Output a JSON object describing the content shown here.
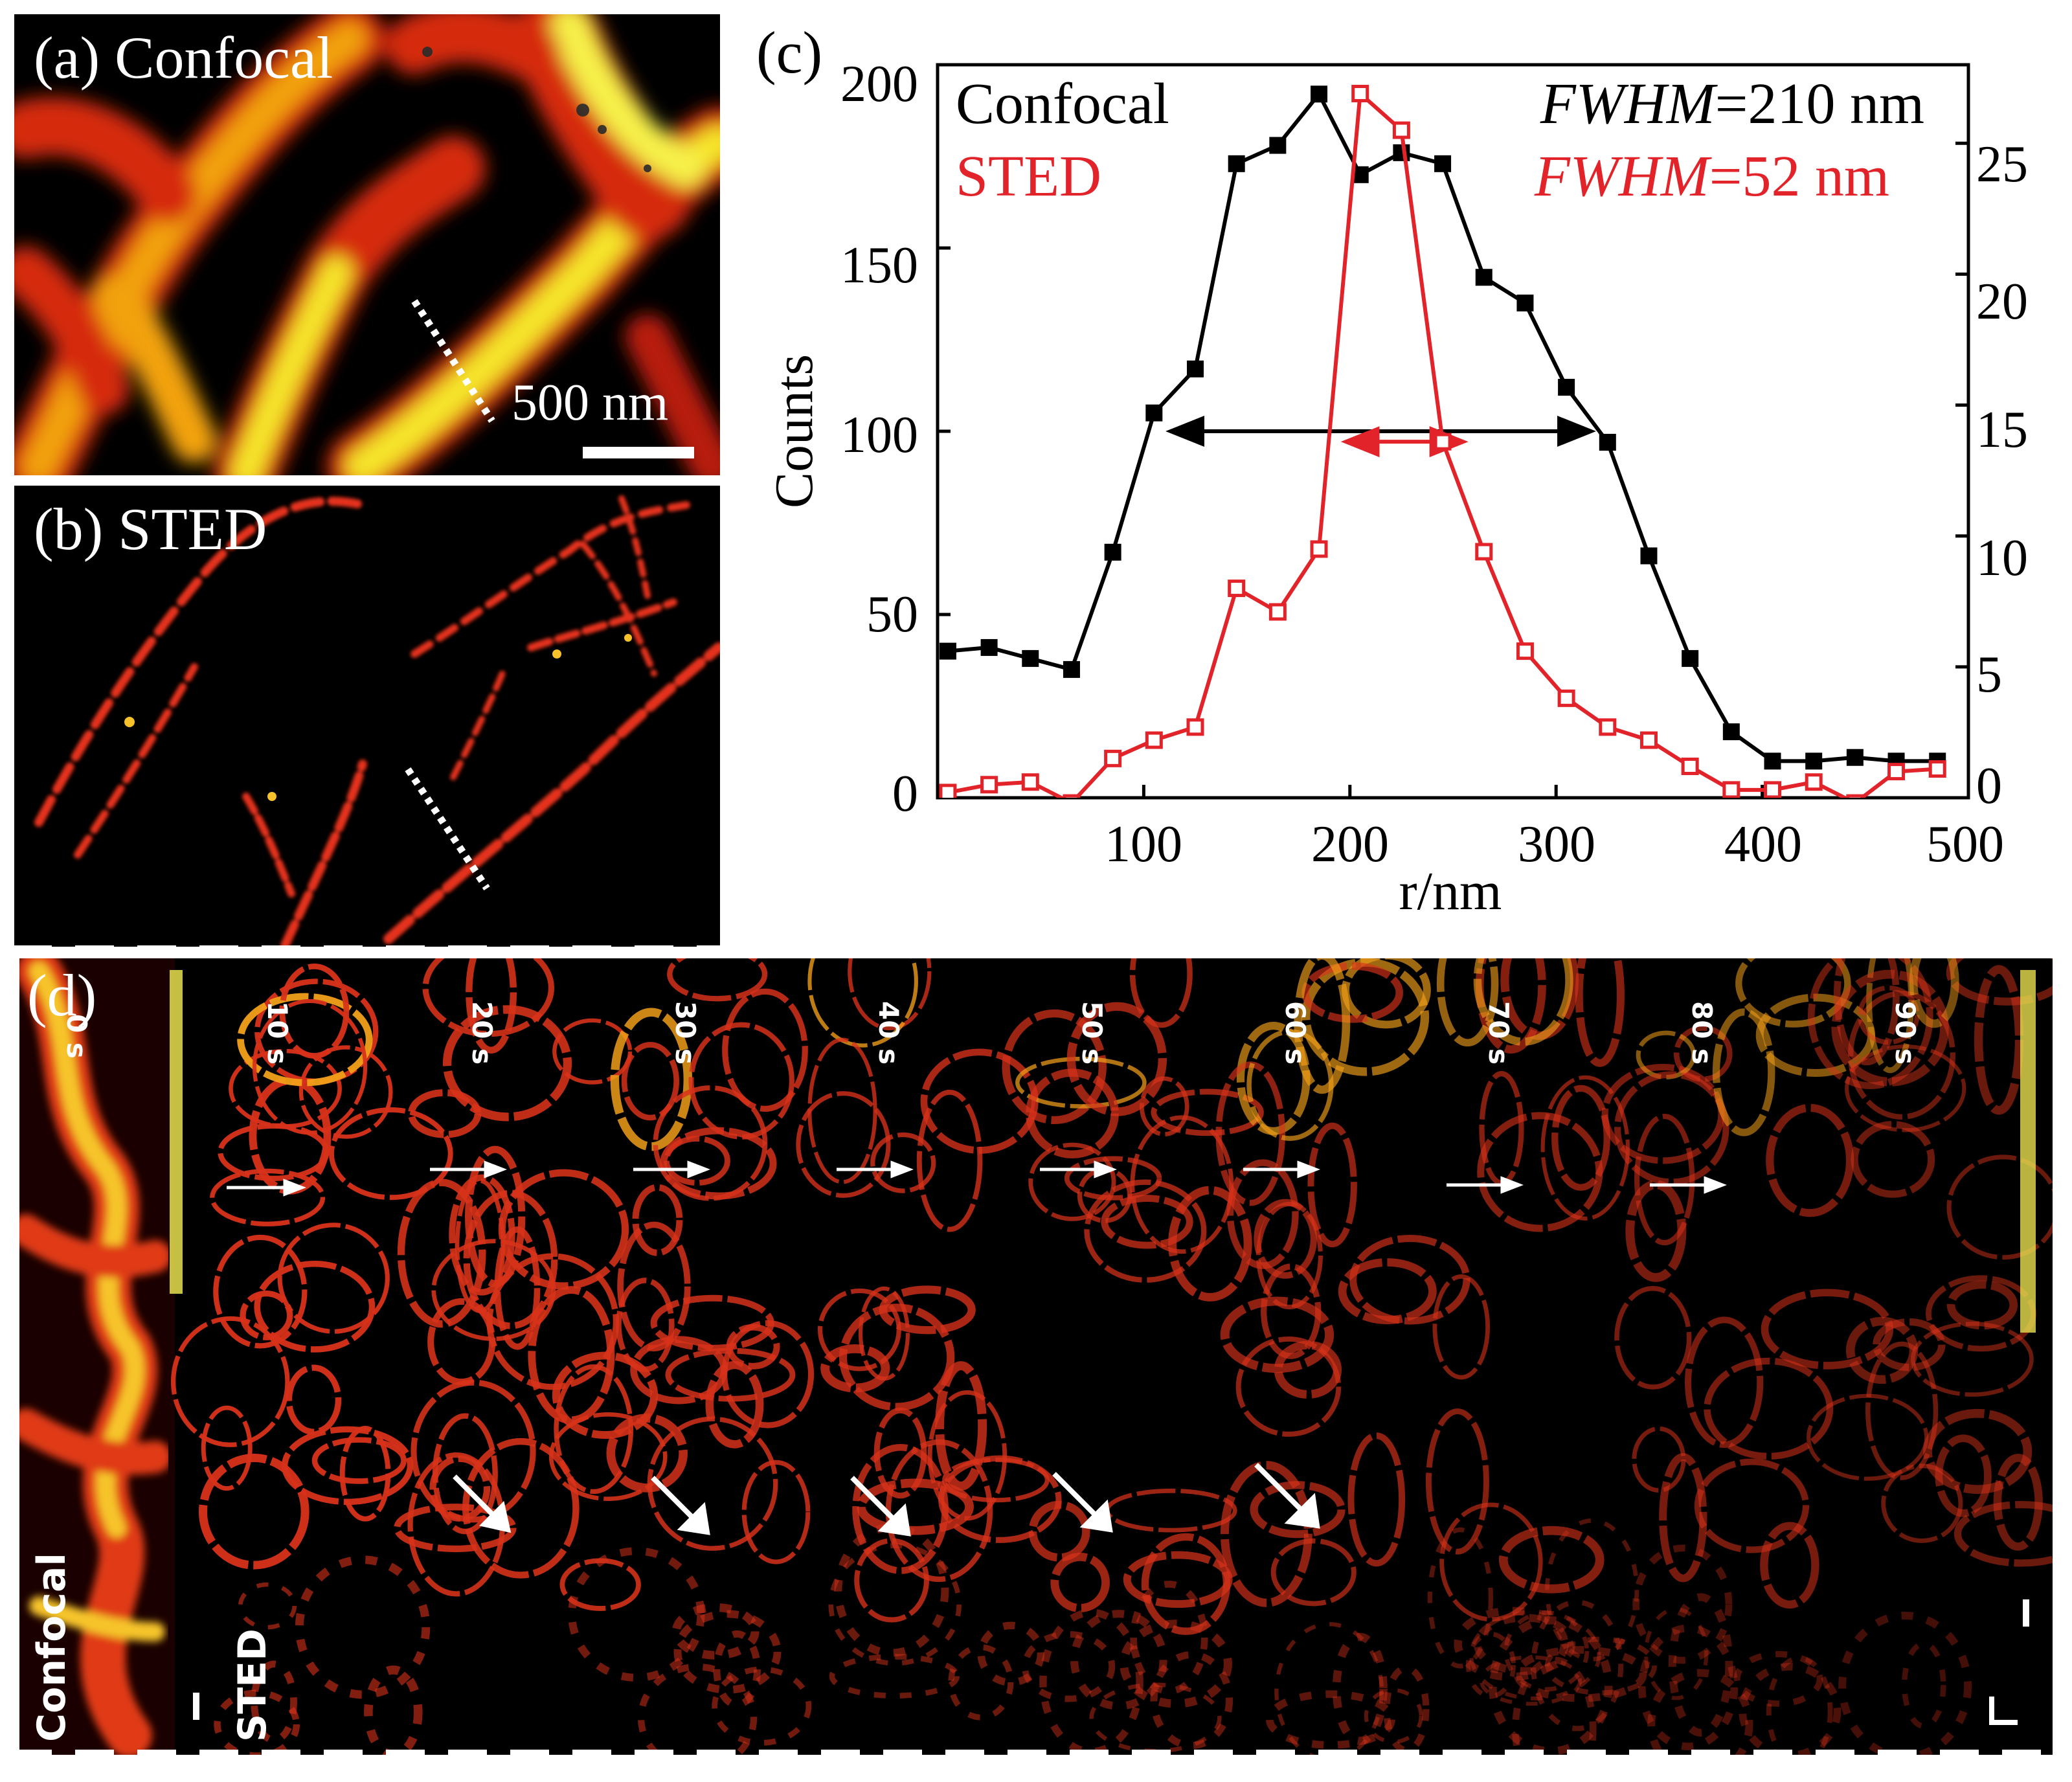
{
  "panels": {
    "a": {
      "label": "(a) Confocal",
      "scalebar_label": "500 nm"
    },
    "b": {
      "label": "(b) STED"
    },
    "c": {
      "label": "(c)"
    },
    "d": {
      "label": "(d)",
      "frame_times": [
        "0 s",
        "10 s",
        "20 s",
        "30 s",
        "40 s",
        "50 s",
        "60 s",
        "70 s",
        "80 s",
        "90 s"
      ],
      "side_labels": {
        "left": "Confocal",
        "right": "STED"
      }
    }
  },
  "chart_data": {
    "type": "line",
    "xlabel": "r/nm",
    "ylabel": "Counts",
    "xlim": [
      0,
      500
    ],
    "ylim": [
      0,
      200
    ],
    "y2lim": [
      0,
      28
    ],
    "xticks": [
      100,
      200,
      300,
      400,
      500
    ],
    "yticks": [
      0,
      50,
      100,
      150,
      200
    ],
    "y2ticks": [
      0,
      5,
      10,
      15,
      20,
      25
    ],
    "legend": [
      "Confocal",
      "STED"
    ],
    "annotations": {
      "confocal": {
        "name": "FWHM",
        "value": "=210 nm",
        "arrow_from": 120,
        "arrow_to": 310,
        "arrow_y": 100
      },
      "sted": {
        "name": "FWHM",
        "value": "=52 nm",
        "arrow_from": 205,
        "arrow_to": 248,
        "arrow_y": 13.6
      }
    },
    "series": [
      {
        "name": "Confocal",
        "axis": "left",
        "color": "#000000",
        "marker": "filled-square",
        "x": [
          5,
          25,
          45,
          65,
          85,
          105,
          125,
          145,
          165,
          185,
          205,
          225,
          245,
          265,
          285,
          305,
          325,
          345,
          365,
          385,
          405,
          425,
          445,
          465,
          485
        ],
        "y": [
          40,
          41,
          38,
          35,
          67,
          105,
          117,
          173,
          178,
          192,
          170,
          176,
          173,
          142,
          135,
          112,
          97,
          66,
          38,
          18,
          10,
          10,
          11,
          10,
          10
        ]
      },
      {
        "name": "STED",
        "axis": "right",
        "color": "#e2232a",
        "marker": "open-square",
        "x": [
          5,
          25,
          45,
          65,
          85,
          105,
          125,
          145,
          165,
          185,
          205,
          225,
          245,
          265,
          285,
          305,
          325,
          345,
          365,
          385,
          405,
          425,
          445,
          465,
          485
        ],
        "y": [
          0.2,
          0.5,
          0.6,
          -0.2,
          1.5,
          2.2,
          2.7,
          8.0,
          7.1,
          9.5,
          26.9,
          25.5,
          13.6,
          9.4,
          5.6,
          3.8,
          2.7,
          2.2,
          1.2,
          0.3,
          0.3,
          0.6,
          -0.2,
          1.0,
          1.1
        ]
      }
    ]
  }
}
